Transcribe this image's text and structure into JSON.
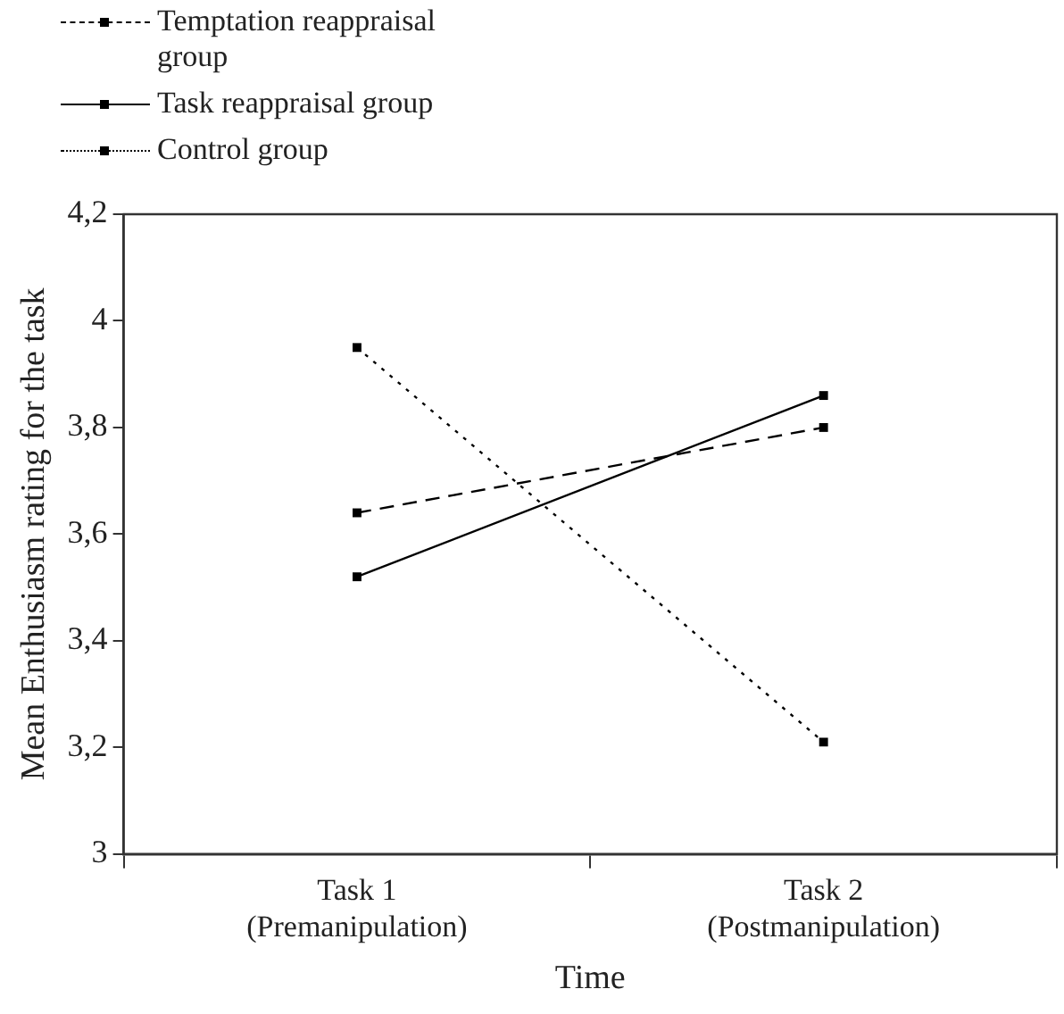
{
  "chart_data": {
    "type": "line",
    "xlabel": "Time",
    "ylabel": "Mean Enthusiasm rating for the task",
    "categories": [
      "Task 1\n(Premanipulation)",
      "Task 2\n(Postmanipulation)"
    ],
    "series": [
      {
        "name": "Temptation reappraisal group",
        "color": "#000000",
        "line_style": "dashed",
        "values": [
          3.64,
          3.8
        ]
      },
      {
        "name": "Task reappraisal group",
        "color": "#000000",
        "line_style": "solid",
        "values": [
          3.52,
          3.86
        ]
      },
      {
        "name": "Control group",
        "color": "#000000",
        "line_style": "dotted",
        "values": [
          3.95,
          3.21
        ]
      }
    ],
    "ylim": [
      3,
      4.2
    ],
    "yticks": [
      3,
      {
        "value": 3.2,
        "label": "3,2"
      },
      {
        "value": 3.4,
        "label": "3,4"
      },
      {
        "value": 3.6,
        "label": "3,6"
      },
      {
        "value": 3.8,
        "label": "3,8"
      },
      4,
      {
        "value": 4.2,
        "label": "4,2"
      }
    ],
    "marker": "square",
    "legend": "top left",
    "grid": false
  }
}
